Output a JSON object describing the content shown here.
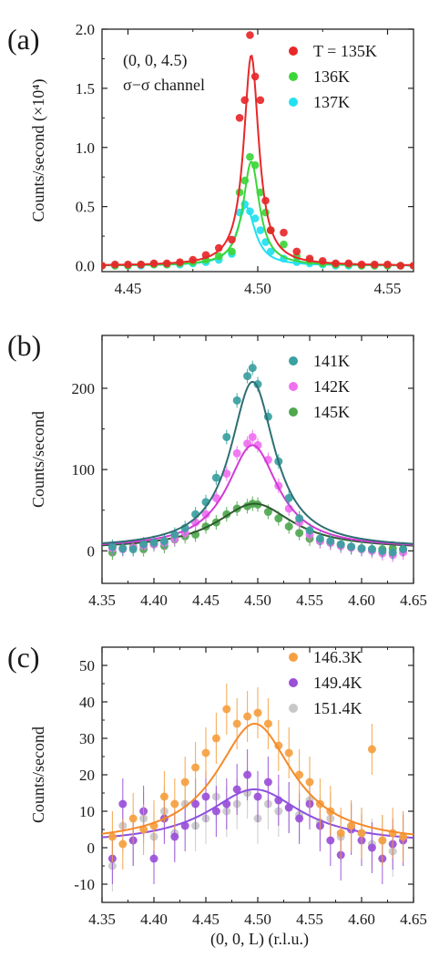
{
  "figure": {
    "xlabel_bottom": "(0, 0, L) (r.l.u.)"
  },
  "chart_data": [
    {
      "type": "scatter",
      "panel": "(a)",
      "ylabel": "Counts/second (×10⁴)",
      "xlim": [
        4.44,
        4.56
      ],
      "ylim": [
        -0.05,
        2.0
      ],
      "xticks": [
        "4.45",
        "4.50",
        "4.55"
      ],
      "yticks": [
        "0.0",
        "0.5",
        "1.0",
        "1.5",
        "2.0"
      ],
      "annotations": [
        "(0, 0, 4.5)",
        "σ−σ channel"
      ],
      "legend_position": "top-right",
      "series": [
        {
          "name": "T = 135K",
          "color": "#e8272a",
          "peak": 1.78,
          "center": 4.4975,
          "hwhm": 0.0035,
          "x": [
            4.44,
            4.445,
            4.45,
            4.455,
            4.46,
            4.465,
            4.47,
            4.475,
            4.48,
            4.485,
            4.49,
            4.493,
            4.495,
            4.497,
            4.499,
            4.501,
            4.503,
            4.505,
            4.51,
            4.515,
            4.52,
            4.525,
            4.53,
            4.535,
            4.54,
            4.545,
            4.55,
            4.555,
            4.56
          ],
          "y": [
            0.0,
            0.01,
            0.01,
            0.01,
            0.02,
            0.02,
            0.03,
            0.05,
            0.09,
            0.15,
            0.22,
            1.25,
            1.4,
            1.95,
            1.6,
            1.4,
            0.55,
            0.3,
            0.28,
            0.12,
            0.06,
            0.04,
            0.02,
            0.02,
            0.01,
            0.01,
            0.01,
            0.0,
            0.0
          ]
        },
        {
          "name": "136K",
          "color": "#3dd63a",
          "peak": 0.88,
          "center": 4.4975,
          "hwhm": 0.0038,
          "x": [
            4.44,
            4.445,
            4.45,
            4.455,
            4.46,
            4.465,
            4.47,
            4.475,
            4.48,
            4.485,
            4.49,
            4.493,
            4.495,
            4.497,
            4.499,
            4.501,
            4.503,
            4.505,
            4.51,
            4.515,
            4.52,
            4.525,
            4.53,
            4.535,
            4.54,
            4.545,
            4.55,
            4.555,
            4.56
          ],
          "y": [
            0.0,
            0.0,
            0.0,
            0.01,
            0.01,
            0.01,
            0.02,
            0.03,
            0.05,
            0.08,
            0.12,
            0.62,
            0.72,
            0.92,
            0.85,
            0.62,
            0.45,
            0.3,
            0.18,
            0.08,
            0.04,
            0.02,
            0.01,
            0.01,
            0.0,
            0.0,
            0.0,
            0.0,
            0.0
          ]
        },
        {
          "name": "137K",
          "color": "#22e0f0",
          "peak": 0.5,
          "center": 4.4955,
          "hwhm": 0.0042,
          "x": [
            4.44,
            4.445,
            4.45,
            4.455,
            4.46,
            4.465,
            4.47,
            4.475,
            4.48,
            4.485,
            4.49,
            4.493,
            4.495,
            4.497,
            4.499,
            4.501,
            4.503,
            4.505,
            4.51,
            4.515,
            4.52,
            4.525,
            4.53,
            4.535,
            4.54,
            4.545,
            4.55,
            4.555,
            4.56
          ],
          "y": [
            0.0,
            0.0,
            0.0,
            0.0,
            0.01,
            0.01,
            0.01,
            0.02,
            0.03,
            0.05,
            0.1,
            0.45,
            0.52,
            0.46,
            0.4,
            0.3,
            0.2,
            0.12,
            0.06,
            0.03,
            0.02,
            0.01,
            0.0,
            0.0,
            0.0,
            0.0,
            0.0,
            0.0,
            0.0
          ]
        }
      ]
    },
    {
      "type": "scatter",
      "panel": "(b)",
      "ylabel": "Counts/second",
      "xlim": [
        4.35,
        4.65
      ],
      "ylim": [
        -40,
        265
      ],
      "xticks": [
        "4.35",
        "4.40",
        "4.45",
        "4.50",
        "4.55",
        "4.60",
        "4.65"
      ],
      "yticks": [
        "0",
        "100",
        "200"
      ],
      "legend_position": "top-right",
      "series": [
        {
          "name": "141K",
          "color": "#3aa0a0",
          "fit_color": "#2e6f73",
          "peak": 208,
          "center": 4.495,
          "hwhm": 0.026,
          "background": 3,
          "x": [
            4.36,
            4.37,
            4.38,
            4.39,
            4.4,
            4.41,
            4.42,
            4.43,
            4.44,
            4.45,
            4.46,
            4.47,
            4.48,
            4.49,
            4.495,
            4.5,
            4.51,
            4.52,
            4.53,
            4.54,
            4.55,
            4.56,
            4.57,
            4.58,
            4.59,
            4.6,
            4.61,
            4.62,
            4.63,
            4.64
          ],
          "y": [
            5,
            3,
            2,
            8,
            10,
            12,
            20,
            28,
            45,
            60,
            90,
            140,
            185,
            215,
            225,
            205,
            165,
            110,
            65,
            40,
            25,
            15,
            12,
            8,
            5,
            3,
            2,
            0,
            -2,
            2
          ]
        },
        {
          "name": "142K",
          "color": "#f070f0",
          "fit_color": "#d13ad6",
          "peak": 130,
          "center": 4.495,
          "hwhm": 0.03,
          "background": 3,
          "x": [
            4.36,
            4.37,
            4.38,
            4.39,
            4.4,
            4.41,
            4.42,
            4.43,
            4.44,
            4.45,
            4.46,
            4.47,
            4.48,
            4.49,
            4.495,
            4.5,
            4.51,
            4.52,
            4.53,
            4.54,
            4.55,
            4.56,
            4.57,
            4.58,
            4.59,
            4.6,
            4.61,
            4.62,
            4.63,
            4.64
          ],
          "y": [
            3,
            2,
            4,
            6,
            8,
            10,
            15,
            22,
            35,
            45,
            65,
            95,
            120,
            132,
            140,
            130,
            112,
            80,
            52,
            35,
            20,
            12,
            10,
            6,
            4,
            2,
            0,
            -3,
            -5,
            -2
          ]
        },
        {
          "name": "145K",
          "color": "#4fa84f",
          "fit_color": "#2f5a2f",
          "peak": 58,
          "center": 4.497,
          "hwhm": 0.045,
          "background": 2,
          "x": [
            4.36,
            4.37,
            4.38,
            4.39,
            4.4,
            4.41,
            4.42,
            4.43,
            4.44,
            4.45,
            4.46,
            4.47,
            4.48,
            4.49,
            4.495,
            4.5,
            4.51,
            4.52,
            4.53,
            4.54,
            4.55,
            4.56,
            4.57,
            4.58,
            4.59,
            4.6,
            4.61,
            4.62,
            4.63,
            4.64
          ],
          "y": [
            -2,
            3,
            5,
            2,
            8,
            6,
            14,
            18,
            20,
            30,
            35,
            45,
            52,
            55,
            58,
            57,
            48,
            40,
            30,
            22,
            15,
            12,
            10,
            8,
            5,
            3,
            2,
            2,
            3,
            2
          ]
        }
      ]
    },
    {
      "type": "scatter",
      "panel": "(c)",
      "ylabel": "Counts/second",
      "xlim": [
        4.35,
        4.65
      ],
      "ylim": [
        -15,
        55
      ],
      "xticks": [
        "4.35",
        "4.40",
        "4.45",
        "4.50",
        "4.55",
        "4.60",
        "4.65"
      ],
      "yticks": [
        "-10",
        "0",
        "10",
        "20",
        "30",
        "40",
        "50"
      ],
      "legend_position": "top-right",
      "series": [
        {
          "name": "146.3K",
          "color": "#f5a040",
          "fit_color": "#f58a2a",
          "peak": 34,
          "center": 4.497,
          "hwhm": 0.045,
          "background": 1,
          "x": [
            4.36,
            4.37,
            4.38,
            4.39,
            4.4,
            4.41,
            4.42,
            4.43,
            4.44,
            4.45,
            4.46,
            4.47,
            4.48,
            4.49,
            4.5,
            4.51,
            4.52,
            4.53,
            4.54,
            4.55,
            4.56,
            4.57,
            4.58,
            4.59,
            4.6,
            4.61,
            4.62,
            4.63,
            4.64
          ],
          "y": [
            3,
            1,
            8,
            5,
            6,
            14,
            12,
            18,
            22,
            26,
            30,
            38,
            34,
            36,
            37,
            34,
            28,
            26,
            20,
            18,
            12,
            10,
            4,
            6,
            4,
            27,
            2,
            4,
            3
          ]
        },
        {
          "name": "149.4K",
          "color": "#9a4fd8",
          "fit_color": "#8e4fe0",
          "peak": 16,
          "center": 4.497,
          "hwhm": 0.055,
          "background": 1,
          "x": [
            4.36,
            4.37,
            4.38,
            4.39,
            4.4,
            4.41,
            4.42,
            4.43,
            4.44,
            4.45,
            4.46,
            4.47,
            4.48,
            4.49,
            4.5,
            4.51,
            4.52,
            4.53,
            4.54,
            4.55,
            4.56,
            4.57,
            4.58,
            4.59,
            4.6,
            4.61,
            4.62,
            4.63,
            4.64
          ],
          "y": [
            -3,
            12,
            2,
            10,
            -3,
            8,
            3,
            6,
            12,
            14,
            10,
            12,
            16,
            20,
            14,
            18,
            13,
            11,
            8,
            12,
            6,
            2,
            -2,
            5,
            2,
            0,
            -3,
            1,
            2
          ]
        },
        {
          "name": "151.4K",
          "color": "#c8c8c8",
          "peak": null,
          "x": [
            4.36,
            4.37,
            4.38,
            4.39,
            4.4,
            4.41,
            4.42,
            4.43,
            4.44,
            4.45,
            4.46,
            4.47,
            4.48,
            4.49,
            4.5,
            4.51,
            4.52,
            4.53,
            4.54,
            4.55,
            4.56,
            4.57,
            4.58,
            4.59,
            4.6,
            4.61,
            4.62,
            4.63,
            4.64
          ],
          "y": [
            -5,
            6,
            2,
            8,
            3,
            10,
            4,
            12,
            6,
            8,
            14,
            10,
            12,
            15,
            8,
            12,
            10,
            11,
            9,
            13,
            7,
            8,
            3,
            6,
            4,
            1,
            2,
            -1,
            3
          ]
        }
      ]
    }
  ]
}
